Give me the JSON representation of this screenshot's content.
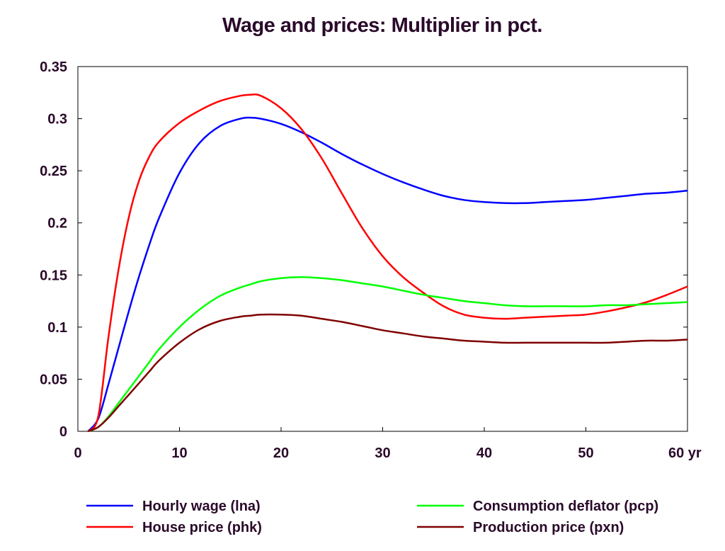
{
  "chart_data": {
    "type": "line",
    "title": "Wage and prices: Multiplier in pct.",
    "xlabel": "yr",
    "ylabel": "",
    "xlim": [
      0,
      60
    ],
    "ylim": [
      0,
      0.35
    ],
    "x_ticks": [
      0,
      10,
      20,
      30,
      40,
      50,
      60
    ],
    "x_tick_labels": [
      "0",
      "10",
      "20",
      "30",
      "40",
      "50",
      "60 yr"
    ],
    "y_ticks": [
      0,
      0.05,
      0.1,
      0.15,
      0.2,
      0.25,
      0.3,
      0.35
    ],
    "y_tick_labels": [
      "0",
      "0.05",
      "0.1",
      "0.15",
      "0.2",
      "0.25",
      "0.3",
      "0.35"
    ],
    "grid": false,
    "legend_position": "bottom",
    "x": [
      1,
      2,
      3,
      4,
      5,
      6,
      7,
      8,
      10,
      12,
      14,
      16,
      17,
      18,
      20,
      22,
      24,
      26,
      28,
      30,
      32,
      34,
      36,
      38,
      40,
      42,
      44,
      46,
      48,
      50,
      52,
      54,
      56,
      58,
      60
    ],
    "series": [
      {
        "name": "Hourly wage (lna)",
        "color": "#0000ff",
        "values": [
          0,
          0.012,
          0.045,
          0.08,
          0.115,
          0.148,
          0.178,
          0.205,
          0.248,
          0.277,
          0.293,
          0.3,
          0.301,
          0.3,
          0.295,
          0.287,
          0.277,
          0.266,
          0.256,
          0.247,
          0.239,
          0.232,
          0.226,
          0.222,
          0.22,
          0.219,
          0.219,
          0.22,
          0.221,
          0.222,
          0.224,
          0.226,
          0.228,
          0.229,
          0.231
        ]
      },
      {
        "name": "House price (phk)",
        "color": "#ff0000",
        "values": [
          0,
          0.014,
          0.09,
          0.155,
          0.205,
          0.24,
          0.263,
          0.278,
          0.296,
          0.308,
          0.317,
          0.322,
          0.323,
          0.322,
          0.31,
          0.29,
          0.262,
          0.228,
          0.195,
          0.168,
          0.148,
          0.133,
          0.12,
          0.112,
          0.109,
          0.108,
          0.109,
          0.11,
          0.111,
          0.112,
          0.115,
          0.119,
          0.124,
          0.131,
          0.139
        ]
      },
      {
        "name": "Consumption deflator (pcp)",
        "color": "#00ff00",
        "values": [
          0,
          0.004,
          0.014,
          0.027,
          0.04,
          0.053,
          0.066,
          0.079,
          0.1,
          0.117,
          0.13,
          0.138,
          0.141,
          0.144,
          0.147,
          0.148,
          0.147,
          0.145,
          0.142,
          0.139,
          0.135,
          0.131,
          0.128,
          0.125,
          0.123,
          0.121,
          0.12,
          0.12,
          0.12,
          0.12,
          0.121,
          0.121,
          0.122,
          0.123,
          0.124
        ]
      },
      {
        "name": "Production price (pxn)",
        "color": "#800000",
        "values": [
          0,
          0.004,
          0.013,
          0.024,
          0.035,
          0.046,
          0.057,
          0.068,
          0.085,
          0.098,
          0.106,
          0.11,
          0.111,
          0.112,
          0.112,
          0.111,
          0.108,
          0.105,
          0.101,
          0.097,
          0.094,
          0.091,
          0.089,
          0.087,
          0.086,
          0.085,
          0.085,
          0.085,
          0.085,
          0.085,
          0.085,
          0.086,
          0.087,
          0.087,
          0.088
        ]
      }
    ]
  }
}
